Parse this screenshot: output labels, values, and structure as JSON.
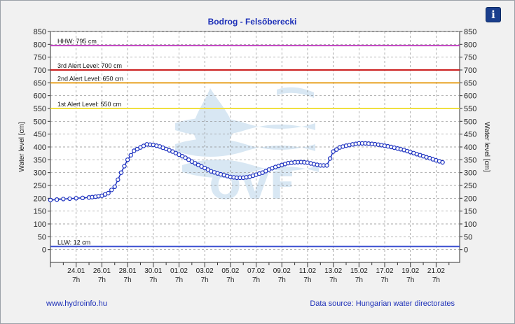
{
  "chart_data": {
    "type": "line",
    "title": "Bodrog - Felsőberecki",
    "ylabel_left": "Water level [cm]",
    "ylabel_right": "Water level [cm]",
    "ylim": [
      -50,
      850
    ],
    "y_ticks": [
      0,
      50,
      100,
      150,
      200,
      250,
      300,
      350,
      400,
      450,
      500,
      550,
      600,
      650,
      700,
      750,
      800,
      850
    ],
    "x_range_days": [
      0,
      31.83
    ],
    "x_ticks": [
      {
        "date": "24.01",
        "hour": "7h",
        "day": 2
      },
      {
        "date": "26.01",
        "hour": "7h",
        "day": 4
      },
      {
        "date": "28.01",
        "hour": "7h",
        "day": 6
      },
      {
        "date": "30.01",
        "hour": "7h",
        "day": 8
      },
      {
        "date": "01.02",
        "hour": "7h",
        "day": 10
      },
      {
        "date": "03.02",
        "hour": "7h",
        "day": 12
      },
      {
        "date": "05.02",
        "hour": "7h",
        "day": 14
      },
      {
        "date": "07.02",
        "hour": "7h",
        "day": 16
      },
      {
        "date": "09.02",
        "hour": "7h",
        "day": 18
      },
      {
        "date": "11.02",
        "hour": "7h",
        "day": 20
      },
      {
        "date": "13.02",
        "hour": "7h",
        "day": 22
      },
      {
        "date": "15.02",
        "hour": "7h",
        "day": 24
      },
      {
        "date": "17.02",
        "hour": "7h",
        "day": 26
      },
      {
        "date": "19.02",
        "hour": "7h",
        "day": 28
      },
      {
        "date": "21.02",
        "hour": "7h",
        "day": 30
      }
    ],
    "reference_lines": [
      {
        "label": "HHW: 795 cm",
        "value": 795,
        "color": "#c040c0"
      },
      {
        "label": "3rd Alert Level: 700 cm",
        "value": 700,
        "color": "#cc1f1f"
      },
      {
        "label": "2nd Alert Level: 650 cm",
        "value": 650,
        "color": "#e8a020"
      },
      {
        "label": "1st Alert Level: 550 cm",
        "value": 550,
        "color": "#f0e040"
      },
      {
        "label": "LLW: 12 cm",
        "value": 12,
        "color": "#3a4fd0"
      }
    ],
    "series": [
      {
        "color": "#1a2fbf",
        "points": [
          [
            0,
            193
          ],
          [
            1,
            197
          ],
          [
            2,
            200
          ],
          [
            3,
            203
          ],
          [
            3.5,
            206
          ],
          [
            4,
            210
          ],
          [
            4.5,
            220
          ],
          [
            5,
            245
          ],
          [
            5.5,
            300
          ],
          [
            6,
            350
          ],
          [
            6.5,
            385
          ],
          [
            7,
            398
          ],
          [
            7.5,
            410
          ],
          [
            8,
            408
          ],
          [
            8.5,
            402
          ],
          [
            9,
            392
          ],
          [
            9.5,
            382
          ],
          [
            10,
            370
          ],
          [
            10.5,
            358
          ],
          [
            11,
            343
          ],
          [
            11.5,
            330
          ],
          [
            12,
            318
          ],
          [
            12.5,
            305
          ],
          [
            13,
            297
          ],
          [
            13.5,
            290
          ],
          [
            14,
            283
          ],
          [
            14.5,
            280
          ],
          [
            15,
            280
          ],
          [
            15.5,
            284
          ],
          [
            16,
            292
          ],
          [
            16.5,
            300
          ],
          [
            17,
            312
          ],
          [
            17.5,
            322
          ],
          [
            18,
            330
          ],
          [
            18.5,
            337
          ],
          [
            19,
            340
          ],
          [
            19.5,
            341
          ],
          [
            20,
            339
          ],
          [
            20.5,
            333
          ],
          [
            21,
            328
          ],
          [
            21.5,
            328
          ],
          [
            22,
            382
          ],
          [
            22.5,
            398
          ],
          [
            23,
            405
          ],
          [
            23.5,
            410
          ],
          [
            24,
            414
          ],
          [
            24.5,
            414
          ],
          [
            25,
            412
          ],
          [
            25.5,
            409
          ],
          [
            26,
            405
          ],
          [
            26.5,
            400
          ],
          [
            27,
            394
          ],
          [
            27.5,
            388
          ],
          [
            28,
            380
          ],
          [
            28.5,
            372
          ],
          [
            29,
            364
          ],
          [
            29.5,
            356
          ],
          [
            30,
            348
          ],
          [
            30.5,
            340
          ]
        ]
      }
    ]
  },
  "footer": {
    "website": "www.hydroinfo.hu",
    "source": "Data source: Hungarian water directorates"
  },
  "info_button": {
    "label": "i"
  },
  "colors": {
    "title": "#1c2fb8",
    "plot_background": "#ffffff",
    "frame_background": "#f1f1f1"
  }
}
